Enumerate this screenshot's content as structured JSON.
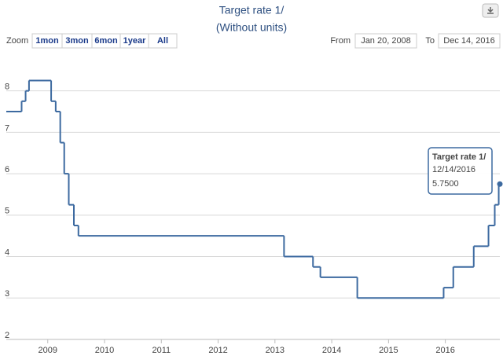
{
  "chart_data": {
    "type": "step",
    "title": "Target rate 1/",
    "subtitle": "(Without units)",
    "zoom_label": "Zoom",
    "zoom_buttons": [
      "1mon",
      "3mon",
      "6mon",
      "1year",
      "All"
    ],
    "from_label": "From",
    "from_value": "Jan 20, 2008",
    "to_label": "To",
    "to_value": "Dec 14, 2016",
    "tooltip": {
      "name": "Target rate 1/",
      "date": "12/14/2016",
      "value": "5.7500"
    },
    "x": [
      2008.27,
      2008.54,
      2008.61,
      2008.67,
      2009.06,
      2009.14,
      2009.22,
      2009.29,
      2009.37,
      2009.46,
      2009.54,
      2013.16,
      2013.67,
      2013.8,
      2014.45,
      2015.97,
      2016.14,
      2016.5,
      2016.76,
      2016.87,
      2016.94
    ],
    "series": [
      {
        "name": "Target rate 1/",
        "color": "#3d6aa0",
        "values": [
          7.5,
          7.75,
          8.0,
          8.25,
          7.75,
          7.5,
          6.75,
          6.0,
          5.25,
          4.75,
          4.5,
          4.0,
          3.75,
          3.5,
          3.0,
          3.25,
          3.75,
          4.25,
          4.75,
          5.25,
          5.75
        ]
      }
    ],
    "xlim": [
      2008.27,
      2016.96
    ],
    "xticks": [
      2009,
      2010,
      2011,
      2012,
      2013,
      2014,
      2015,
      2016
    ],
    "ylim": [
      2,
      8.6
    ],
    "yticks": [
      2,
      3,
      4,
      5,
      6,
      7,
      8
    ],
    "grid": true
  }
}
